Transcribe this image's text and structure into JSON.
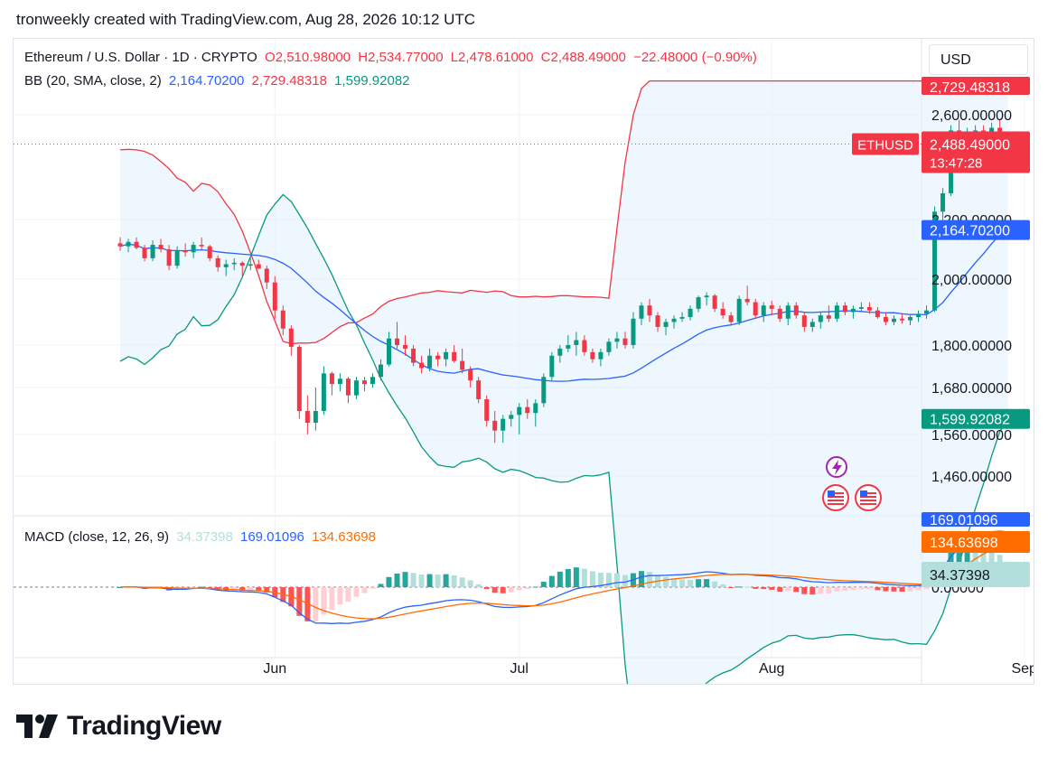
{
  "header": {
    "created_text": "tronweekly created with TradingView.com, Aug 28, 2026 10:12 UTC"
  },
  "legend": {
    "symbol": "Ethereum / U.S. Dollar · 1D · CRYPTO",
    "open": "O2,510.98000",
    "high": "H2,534.77000",
    "low": "L2,478.61000",
    "close": "C2,488.49000",
    "change": "−22.48000 (−0.90%)",
    "bb_label": "BB (20, SMA, close, 2)",
    "bb_basis": "2,164.70200",
    "bb_upper": "2,729.48318",
    "bb_lower": "1,599.92082",
    "macd_label": "MACD (close, 12, 26, 9)",
    "macd_hist": "34.37398",
    "macd_line": "169.01096",
    "macd_signal": "134.63698"
  },
  "currency_button": "USD",
  "symbol_tag": "ETHUSD",
  "price_labels": {
    "last": "2,488.49000",
    "countdown": "13:47:28",
    "upper": "2,729.48318",
    "basis": "2,164.70200",
    "lower": "1,599.92082",
    "macd_line": "169.01096",
    "macd_signal": "134.63698",
    "macd_hist": "34.37398"
  },
  "macd_zero_label": "0.00000",
  "colors": {
    "up": "#089981",
    "down": "#f23645",
    "basis": "#2962ff",
    "upper": "#f23645",
    "lower": "#089981",
    "fill": "#e3f2fd",
    "macd": "#2962ff",
    "signal": "#ff6d00",
    "hist_up_strong": "#26a69a",
    "hist_up_weak": "#b2dfdb",
    "hist_dn_strong": "#ff5252",
    "hist_dn_weak": "#ffcdd2"
  },
  "footer": {
    "brand": "TradingView"
  },
  "chart_data": {
    "type": "candlestick",
    "title": "Ethereum / U.S. Dollar · 1D · CRYPTO",
    "y_ticks": [
      2600,
      2200,
      2000,
      1800,
      1680,
      1560,
      1460
    ],
    "y_tick_labels": [
      "2,600.00000",
      "2,200.00000",
      "2,000.00000",
      "1,800.00000",
      "1,680.00000",
      "1,560.00000",
      "1,460.00000"
    ],
    "x_ticks": [
      {
        "label": "Jun",
        "date": "2026-06-01"
      },
      {
        "label": "Jul",
        "date": "2026-07-01"
      },
      {
        "label": "Aug",
        "date": "2026-08-01"
      },
      {
        "label": "Sep",
        "date": "2026-09-01"
      }
    ],
    "start_date": "2026-05-13",
    "candles": [
      [
        2120,
        2140,
        2095,
        2110
      ],
      [
        2110,
        2135,
        2090,
        2125
      ],
      [
        2125,
        2140,
        2100,
        2105
      ],
      [
        2105,
        2115,
        2060,
        2070
      ],
      [
        2070,
        2130,
        2060,
        2115
      ],
      [
        2115,
        2135,
        2090,
        2100
      ],
      [
        2100,
        2115,
        2030,
        2045
      ],
      [
        2045,
        2110,
        2035,
        2095
      ],
      [
        2095,
        2120,
        2075,
        2090
      ],
      [
        2090,
        2125,
        2070,
        2115
      ],
      [
        2115,
        2140,
        2100,
        2110
      ],
      [
        2110,
        2115,
        2060,
        2070
      ],
      [
        2070,
        2080,
        2025,
        2040
      ],
      [
        2040,
        2065,
        2010,
        2050
      ],
      [
        2050,
        2070,
        2030,
        2055
      ],
      [
        2055,
        2060,
        2010,
        2045
      ],
      [
        2045,
        2070,
        2030,
        2050
      ],
      [
        2050,
        2065,
        2040,
        2035
      ],
      [
        2035,
        2045,
        1970,
        1990
      ],
      [
        1990,
        2010,
        1880,
        1905
      ],
      [
        1905,
        1920,
        1830,
        1850
      ],
      [
        1850,
        1860,
        1770,
        1795
      ],
      [
        1795,
        1800,
        1600,
        1620
      ],
      [
        1620,
        1660,
        1560,
        1590
      ],
      [
        1590,
        1680,
        1570,
        1620
      ],
      [
        1620,
        1740,
        1610,
        1720
      ],
      [
        1720,
        1725,
        1660,
        1690
      ],
      [
        1690,
        1720,
        1670,
        1705
      ],
      [
        1705,
        1710,
        1640,
        1660
      ],
      [
        1660,
        1710,
        1650,
        1700
      ],
      [
        1700,
        1710,
        1670,
        1690
      ],
      [
        1690,
        1720,
        1680,
        1710
      ],
      [
        1710,
        1760,
        1700,
        1745
      ],
      [
        1745,
        1840,
        1740,
        1820
      ],
      [
        1820,
        1870,
        1790,
        1800
      ],
      [
        1800,
        1830,
        1770,
        1790
      ],
      [
        1790,
        1800,
        1740,
        1750
      ],
      [
        1750,
        1770,
        1720,
        1735
      ],
      [
        1735,
        1790,
        1725,
        1770
      ],
      [
        1770,
        1780,
        1740,
        1760
      ],
      [
        1760,
        1790,
        1740,
        1780
      ],
      [
        1780,
        1800,
        1750,
        1755
      ],
      [
        1755,
        1790,
        1720,
        1730
      ],
      [
        1730,
        1740,
        1680,
        1700
      ],
      [
        1700,
        1710,
        1640,
        1650
      ],
      [
        1650,
        1660,
        1580,
        1595
      ],
      [
        1595,
        1620,
        1540,
        1570
      ],
      [
        1570,
        1610,
        1540,
        1600
      ],
      [
        1600,
        1620,
        1580,
        1610
      ],
      [
        1610,
        1640,
        1560,
        1630
      ],
      [
        1630,
        1650,
        1600,
        1615
      ],
      [
        1615,
        1650,
        1580,
        1640
      ],
      [
        1640,
        1720,
        1630,
        1710
      ],
      [
        1710,
        1780,
        1700,
        1770
      ],
      [
        1770,
        1800,
        1750,
        1790
      ],
      [
        1790,
        1830,
        1780,
        1800
      ],
      [
        1800,
        1840,
        1770,
        1815
      ],
      [
        1815,
        1830,
        1770,
        1780
      ],
      [
        1780,
        1790,
        1750,
        1760
      ],
      [
        1760,
        1790,
        1740,
        1780
      ],
      [
        1780,
        1820,
        1770,
        1810
      ],
      [
        1810,
        1840,
        1790,
        1820
      ],
      [
        1820,
        1840,
        1790,
        1800
      ],
      [
        1800,
        1900,
        1790,
        1880
      ],
      [
        1880,
        1930,
        1860,
        1920
      ],
      [
        1920,
        1940,
        1870,
        1890
      ],
      [
        1890,
        1900,
        1840,
        1855
      ],
      [
        1855,
        1880,
        1830,
        1870
      ],
      [
        1870,
        1890,
        1850,
        1880
      ],
      [
        1880,
        1900,
        1870,
        1885
      ],
      [
        1885,
        1920,
        1875,
        1910
      ],
      [
        1910,
        1950,
        1900,
        1945
      ],
      [
        1945,
        1960,
        1920,
        1950
      ],
      [
        1950,
        1955,
        1900,
        1910
      ],
      [
        1910,
        1930,
        1880,
        1890
      ],
      [
        1890,
        1900,
        1860,
        1870
      ],
      [
        1870,
        1950,
        1860,
        1940
      ],
      [
        1940,
        1980,
        1920,
        1930
      ],
      [
        1930,
        1940,
        1880,
        1890
      ],
      [
        1890,
        1930,
        1870,
        1920
      ],
      [
        1920,
        1935,
        1890,
        1910
      ],
      [
        1910,
        1920,
        1870,
        1880
      ],
      [
        1880,
        1930,
        1860,
        1920
      ],
      [
        1920,
        1930,
        1880,
        1890
      ],
      [
        1890,
        1900,
        1840,
        1855
      ],
      [
        1855,
        1880,
        1840,
        1870
      ],
      [
        1870,
        1900,
        1850,
        1890
      ],
      [
        1890,
        1920,
        1870,
        1880
      ],
      [
        1880,
        1930,
        1870,
        1920
      ],
      [
        1920,
        1930,
        1890,
        1900
      ],
      [
        1900,
        1920,
        1880,
        1910
      ],
      [
        1910,
        1930,
        1900,
        1915
      ],
      [
        1915,
        1930,
        1895,
        1905
      ],
      [
        1905,
        1915,
        1880,
        1885
      ],
      [
        1885,
        1900,
        1860,
        1870
      ],
      [
        1870,
        1890,
        1860,
        1880
      ],
      [
        1880,
        1895,
        1865,
        1875
      ],
      [
        1875,
        1890,
        1860,
        1885
      ],
      [
        1885,
        1905,
        1870,
        1895
      ],
      [
        1895,
        1920,
        1880,
        1905
      ],
      [
        1905,
        2250,
        1900,
        2230
      ],
      [
        2230,
        2320,
        2190,
        2300
      ],
      [
        2300,
        2560,
        2290,
        2540
      ],
      [
        2540,
        2580,
        2410,
        2460
      ],
      [
        2460,
        2550,
        2430,
        2520
      ],
      [
        2520,
        2560,
        2480,
        2540
      ],
      [
        2540,
        2560,
        2470,
        2490
      ],
      [
        2490,
        2570,
        2470,
        2550
      ],
      [
        2550,
        2580,
        2500,
        2510
      ],
      [
        2510,
        2535,
        2479,
        2488
      ]
    ],
    "bb_upper": [
      2466,
      2468,
      2466,
      2460,
      2446,
      2421,
      2394,
      2358,
      2342,
      2308,
      2338,
      2332,
      2306,
      2260,
      2220,
      2161,
      2089,
      2012,
      1932,
      1873,
      1811,
      1804,
      1806,
      1806,
      1808,
      1820,
      1838,
      1856,
      1867,
      1868,
      1882,
      1894,
      1917,
      1933,
      1941,
      1946,
      1952,
      1958,
      1960,
      1965,
      1962,
      1960,
      1958,
      1966,
      1963,
      1960,
      1964,
      1962,
      1950,
      1946,
      1946,
      1948,
      1946,
      1947,
      1950,
      1950,
      1948,
      1946,
      1946,
      1945,
      1942,
      2170,
      2420,
      2600,
      2700,
      2729
    ]
  }
}
